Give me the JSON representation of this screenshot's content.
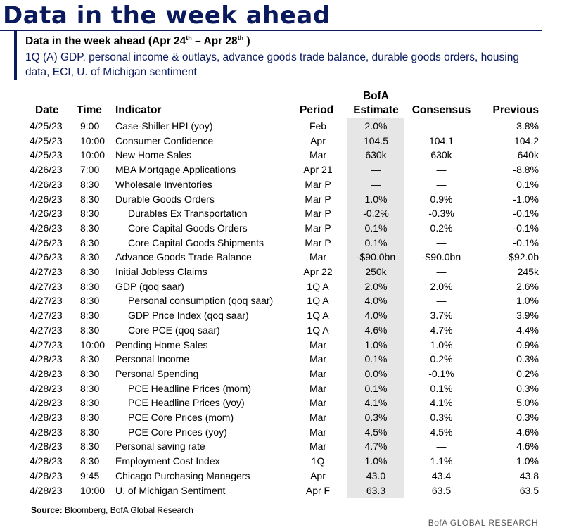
{
  "title": "Data in the week ahead",
  "subtitle": {
    "prefix": "Data in the week ahead (Apr 24",
    "sup1": "th",
    "mid": " – Apr 28",
    "sup2": "th",
    "suffix": " )"
  },
  "description": "1Q (A) GDP, personal income & outlays, advance goods trade balance, durable goods orders, housing data, ECI, U. of Michigan sentiment",
  "headers": {
    "date": "Date",
    "time": "Time",
    "indicator": "Indicator",
    "period": "Period",
    "bofa_line1": "BofA",
    "bofa_line2": "Estimate",
    "consensus": "Consensus",
    "previous": "Previous"
  },
  "rows": [
    {
      "date": "4/25/23",
      "time": "9:00",
      "indicator": "Case-Shiller HPI (yoy)",
      "sub": false,
      "period": "Feb",
      "bofa": "2.0%",
      "consensus": "—",
      "previous": "3.8%"
    },
    {
      "date": "4/25/23",
      "time": "10:00",
      "indicator": "Consumer Confidence",
      "sub": false,
      "period": "Apr",
      "bofa": "104.5",
      "consensus": "104.1",
      "previous": "104.2"
    },
    {
      "date": "4/25/23",
      "time": "10:00",
      "indicator": "New Home Sales",
      "sub": false,
      "period": "Mar",
      "bofa": "630k",
      "consensus": "630k",
      "previous": "640k"
    },
    {
      "date": "4/26/23",
      "time": "7:00",
      "indicator": "MBA Mortgage Applications",
      "sub": false,
      "period": "Apr 21",
      "bofa": "—",
      "consensus": "—",
      "previous": "-8.8%"
    },
    {
      "date": "4/26/23",
      "time": "8:30",
      "indicator": "Wholesale Inventories",
      "sub": false,
      "period": "Mar P",
      "bofa": "—",
      "consensus": "—",
      "previous": "0.1%"
    },
    {
      "date": "4/26/23",
      "time": "8:30",
      "indicator": "Durable Goods Orders",
      "sub": false,
      "period": "Mar P",
      "bofa": "1.0%",
      "consensus": "0.9%",
      "previous": "-1.0%"
    },
    {
      "date": "4/26/23",
      "time": "8:30",
      "indicator": "Durables Ex Transportation",
      "sub": true,
      "period": "Mar P",
      "bofa": "-0.2%",
      "consensus": "-0.3%",
      "previous": "-0.1%"
    },
    {
      "date": "4/26/23",
      "time": "8:30",
      "indicator": "Core Capital Goods Orders",
      "sub": true,
      "period": "Mar P",
      "bofa": "0.1%",
      "consensus": "0.2%",
      "previous": "-0.1%"
    },
    {
      "date": "4/26/23",
      "time": "8:30",
      "indicator": "Core Capital Goods Shipments",
      "sub": true,
      "period": "Mar P",
      "bofa": "0.1%",
      "consensus": "—",
      "previous": "-0.1%"
    },
    {
      "date": "4/26/23",
      "time": "8:30",
      "indicator": "Advance Goods Trade Balance",
      "sub": false,
      "period": "Mar",
      "bofa": "-$90.0bn",
      "consensus": "-$90.0bn",
      "previous": "-$92.0b"
    },
    {
      "date": "4/27/23",
      "time": "8:30",
      "indicator": "Initial Jobless Claims",
      "sub": false,
      "period": "Apr 22",
      "bofa": "250k",
      "consensus": "—",
      "previous": "245k"
    },
    {
      "date": "4/27/23",
      "time": "8:30",
      "indicator": "GDP (qoq saar)",
      "sub": false,
      "period": "1Q A",
      "bofa": "2.0%",
      "consensus": "2.0%",
      "previous": "2.6%"
    },
    {
      "date": "4/27/23",
      "time": "8:30",
      "indicator": "Personal consumption (qoq saar)",
      "sub": true,
      "period": "1Q A",
      "bofa": "4.0%",
      "consensus": "—",
      "previous": "1.0%"
    },
    {
      "date": "4/27/23",
      "time": "8:30",
      "indicator": "GDP Price Index (qoq saar)",
      "sub": true,
      "period": "1Q A",
      "bofa": "4.0%",
      "consensus": "3.7%",
      "previous": "3.9%"
    },
    {
      "date": "4/27/23",
      "time": "8:30",
      "indicator": "Core PCE (qoq saar)",
      "sub": true,
      "period": "1Q A",
      "bofa": "4.6%",
      "consensus": "4.7%",
      "previous": "4.4%"
    },
    {
      "date": "4/27/23",
      "time": "10:00",
      "indicator": "Pending Home Sales",
      "sub": false,
      "period": "Mar",
      "bofa": "1.0%",
      "consensus": "1.0%",
      "previous": "0.9%"
    },
    {
      "date": "4/28/23",
      "time": "8:30",
      "indicator": "Personal Income",
      "sub": false,
      "period": "Mar",
      "bofa": "0.1%",
      "consensus": "0.2%",
      "previous": "0.3%"
    },
    {
      "date": "4/28/23",
      "time": "8:30",
      "indicator": "Personal Spending",
      "sub": false,
      "period": "Mar",
      "bofa": "0.0%",
      "consensus": "-0.1%",
      "previous": "0.2%"
    },
    {
      "date": "4/28/23",
      "time": "8:30",
      "indicator": "PCE Headline Prices (mom)",
      "sub": true,
      "period": "Mar",
      "bofa": "0.1%",
      "consensus": "0.1%",
      "previous": "0.3%"
    },
    {
      "date": "4/28/23",
      "time": "8:30",
      "indicator": "PCE Headline Prices (yoy)",
      "sub": true,
      "period": "Mar",
      "bofa": "4.1%",
      "consensus": "4.1%",
      "previous": "5.0%"
    },
    {
      "date": "4/28/23",
      "time": "8:30",
      "indicator": "PCE Core Prices (mom)",
      "sub": true,
      "period": "Mar",
      "bofa": "0.3%",
      "consensus": "0.3%",
      "previous": "0.3%"
    },
    {
      "date": "4/28/23",
      "time": "8:30",
      "indicator": "PCE Core Prices (yoy)",
      "sub": true,
      "period": "Mar",
      "bofa": "4.5%",
      "consensus": "4.5%",
      "previous": "4.6%"
    },
    {
      "date": "4/28/23",
      "time": "8:30",
      "indicator": "Personal saving rate",
      "sub": false,
      "period": "Mar",
      "bofa": "4.7%",
      "consensus": "—",
      "previous": "4.6%"
    },
    {
      "date": "4/28/23",
      "time": "8:30",
      "indicator": "Employment Cost Index",
      "sub": false,
      "period": "1Q",
      "bofa": "1.0%",
      "consensus": "1.1%",
      "previous": "1.0%"
    },
    {
      "date": "4/28/23",
      "time": "9:45",
      "indicator": "Chicago Purchasing Managers",
      "sub": false,
      "period": "Apr",
      "bofa": "43.0",
      "consensus": "43.4",
      "previous": "43.8"
    },
    {
      "date": "4/28/23",
      "time": "10:00",
      "indicator": "U. of Michigan Sentiment",
      "sub": false,
      "period": "Apr F",
      "bofa": "63.3",
      "consensus": "63.5",
      "previous": "63.5"
    }
  ],
  "source": {
    "label": "Source:",
    "text": " Bloomberg, BofA Global Research"
  },
  "footer": "BofA GLOBAL RESEARCH"
}
